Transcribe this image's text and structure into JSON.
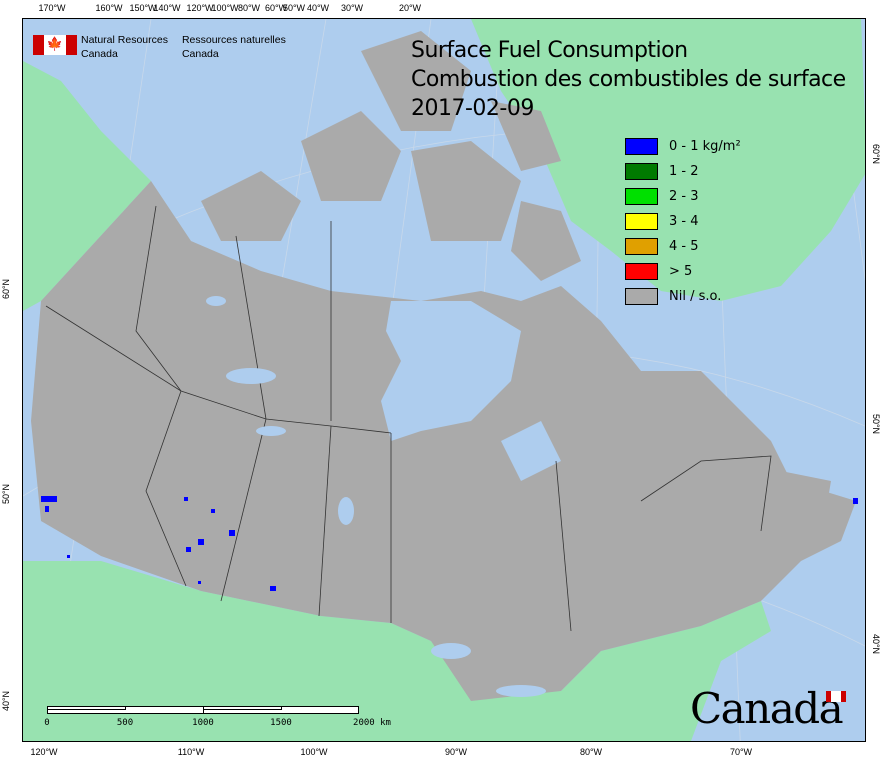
{
  "header": {
    "org_en_line1": "Natural Resources",
    "org_en_line2": "Canada",
    "org_fr_line1": "Ressources naturelles",
    "org_fr_line2": "Canada",
    "flag_icon": "maple-leaf"
  },
  "title": {
    "line1": "Surface Fuel Consumption",
    "line2": "Combustion des combustibles de surface",
    "date": "2017-02-09"
  },
  "legend": [
    {
      "label": "0 - 1 kg/m²",
      "color": "#0000ff"
    },
    {
      "label": "1 - 2",
      "color": "#007a00"
    },
    {
      "label": "2 - 3",
      "color": "#00e000"
    },
    {
      "label": "3 - 4",
      "color": "#ffff00"
    },
    {
      "label": "4 - 5",
      "color": "#e0a000"
    },
    {
      "label": "> 5",
      "color": "#ff0000"
    },
    {
      "label": "Nil / s.o.",
      "color": "#aaaaaa"
    }
  ],
  "axes": {
    "top": [
      "170°W",
      "160°W",
      "150°W",
      "140°W",
      "120°W",
      "100°W",
      "80°W",
      "60°W",
      "50°W",
      "40°W",
      "30°W",
      "20°W"
    ],
    "bottom": [
      "120°W",
      "110°W",
      "100°W",
      "90°W",
      "80°W",
      "70°W"
    ],
    "left": [
      "60°N",
      "50°N",
      "40°N"
    ],
    "right": [
      "60°N",
      "50°N",
      "40°N"
    ]
  },
  "scale_bar": {
    "labels": [
      "0",
      "500",
      "1000",
      "1500",
      "2000 km"
    ]
  },
  "wordmark": "Canada",
  "colors": {
    "water": "#aecdee",
    "foreign_land": "#98e2b0",
    "canada_nil": "#aaaaaa",
    "fire": "#0000ff"
  }
}
